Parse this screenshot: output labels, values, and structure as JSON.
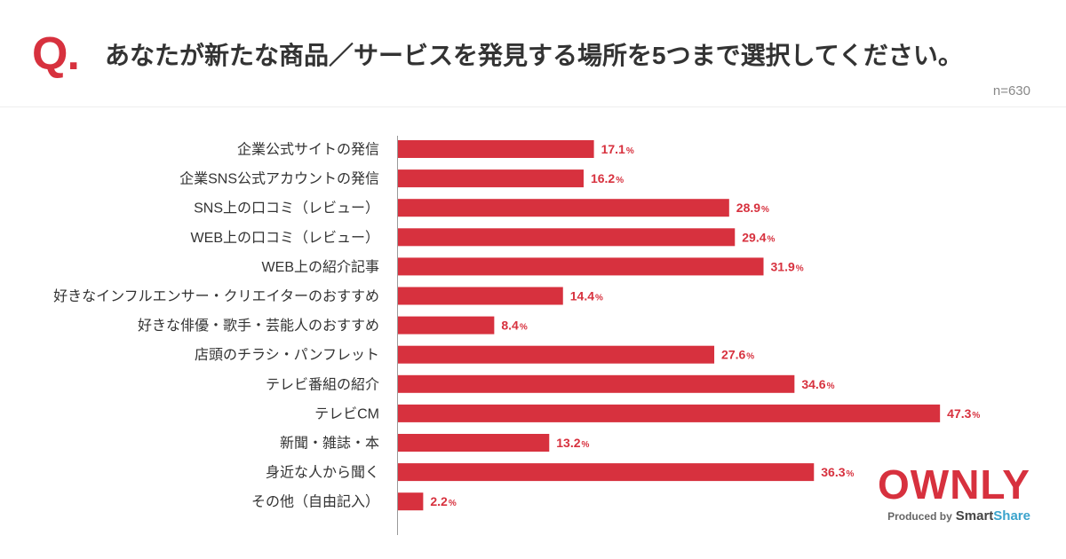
{
  "header": {
    "q_mark": "Q."
  },
  "chart_data": {
    "type": "bar",
    "title": "あなたが新たな商品／サービスを発見する場所を5つまで選択してください。",
    "sample_size": "n=630",
    "categories": [
      "企業公式サイトの発信",
      "企業SNS公式アカウントの発信",
      "SNS上の口コミ（レビュー）",
      "WEB上の口コミ（レビュー）",
      "WEB上の紹介記事",
      "好きなインフルエンサー・クリエイターのおすすめ",
      "好きな俳優・歌手・芸能人のおすすめ",
      "店頭のチラシ・パンフレット",
      "テレビ番組の紹介",
      "テレビCM",
      "新聞・雑誌・本",
      "身近な人から聞く",
      "その他（自由記入）"
    ],
    "values": [
      17.1,
      16.2,
      28.9,
      29.4,
      31.9,
      14.4,
      8.4,
      27.6,
      34.6,
      47.3,
      13.2,
      36.3,
      2.2
    ],
    "unit": "%",
    "xlim": [
      0,
      50
    ],
    "grid": false
  },
  "logo": {
    "brand": "OWNLY",
    "produced_by": "Produced by",
    "smart": "Smart",
    "share": "Share"
  },
  "colors": {
    "accent": "#d7313e",
    "text": "#333333",
    "muted": "#888888",
    "axis": "#9a9a9a",
    "share": "#3aa3cc"
  }
}
